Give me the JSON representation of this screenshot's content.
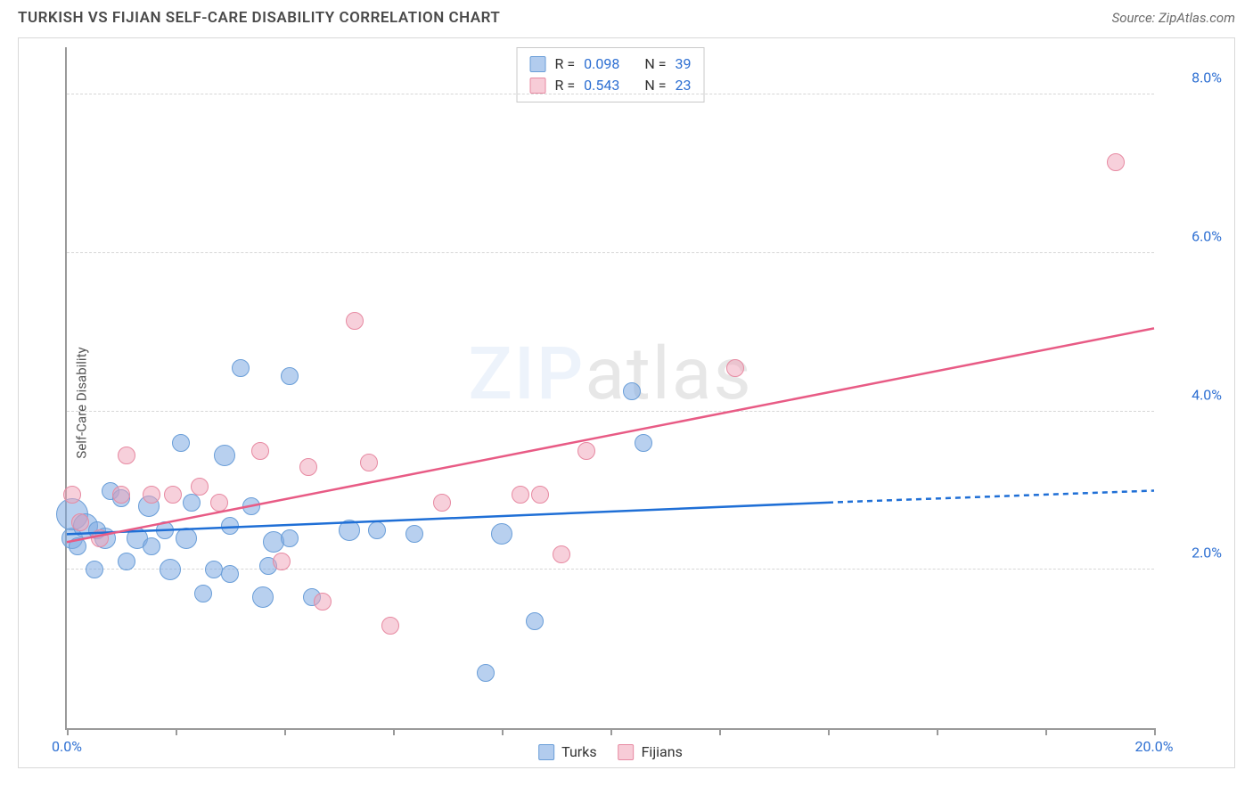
{
  "title": "TURKISH VS FIJIAN SELF-CARE DISABILITY CORRELATION CHART",
  "source": "Source: ZipAtlas.com",
  "ylabel": "Self-Care Disability",
  "watermark_a": "ZIP",
  "watermark_b": "atlas",
  "chart": {
    "type": "scatter",
    "background_color": "#ffffff",
    "grid_color": "#d6d6d6",
    "axis_color": "#9a9a9a",
    "tick_label_color": "#2d6fd2",
    "label_color": "#555555",
    "title_color": "#4a4a4a",
    "title_fontsize": 17,
    "label_fontsize": 15,
    "tick_fontsize": 16,
    "xlim": [
      0,
      20
    ],
    "ylim": [
      0,
      8.6
    ],
    "x_ticks": [
      0,
      2,
      4,
      6,
      8,
      10,
      12,
      14,
      16,
      18,
      20
    ],
    "x_tick_labels": {
      "0": "0.0%",
      "20": "20.0%"
    },
    "y_gridlines": [
      2,
      4,
      6,
      8
    ],
    "y_tick_labels": {
      "2": "2.0%",
      "4": "4.0%",
      "6": "6.0%",
      "8": "8.0%"
    },
    "marker_radius_default": 10,
    "series_blue": {
      "name": "Turks",
      "color_fill": "#7eaae2",
      "color_stroke": "#6a9ed8",
      "fill_opacity": 0.55,
      "R": "0.098",
      "N": "39",
      "trend": {
        "x1": 0,
        "y1": 2.45,
        "x2_solid": 14,
        "y2_solid": 2.85,
        "x2": 20,
        "y2": 3.0,
        "stroke": "#1f6fd6",
        "width": 2.5,
        "dash_after_solid": true
      },
      "points": [
        {
          "x": 0.1,
          "y": 2.4,
          "r": 12
        },
        {
          "x": 0.1,
          "y": 2.7,
          "r": 18
        },
        {
          "x": 0.2,
          "y": 2.3,
          "r": 10
        },
        {
          "x": 0.35,
          "y": 2.55,
          "r": 14
        },
        {
          "x": 0.5,
          "y": 2.0,
          "r": 10
        },
        {
          "x": 0.55,
          "y": 2.5,
          "r": 10
        },
        {
          "x": 0.7,
          "y": 2.4,
          "r": 12
        },
        {
          "x": 0.8,
          "y": 3.0,
          "r": 10
        },
        {
          "x": 1.0,
          "y": 2.9,
          "r": 10
        },
        {
          "x": 1.1,
          "y": 2.1,
          "r": 10
        },
        {
          "x": 1.3,
          "y": 2.4,
          "r": 12
        },
        {
          "x": 1.5,
          "y": 2.8,
          "r": 12
        },
        {
          "x": 1.55,
          "y": 2.3,
          "r": 10
        },
        {
          "x": 1.8,
          "y": 2.5,
          "r": 10
        },
        {
          "x": 1.9,
          "y": 2.0,
          "r": 12
        },
        {
          "x": 2.1,
          "y": 3.6,
          "r": 10
        },
        {
          "x": 2.2,
          "y": 2.4,
          "r": 12
        },
        {
          "x": 2.3,
          "y": 2.85,
          "r": 10
        },
        {
          "x": 2.5,
          "y": 1.7,
          "r": 10
        },
        {
          "x": 2.7,
          "y": 2.0,
          "r": 10
        },
        {
          "x": 2.9,
          "y": 3.45,
          "r": 12
        },
        {
          "x": 3.0,
          "y": 2.55,
          "r": 10
        },
        {
          "x": 3.0,
          "y": 1.95,
          "r": 10
        },
        {
          "x": 3.2,
          "y": 4.55,
          "r": 10
        },
        {
          "x": 3.4,
          "y": 2.8,
          "r": 10
        },
        {
          "x": 3.6,
          "y": 1.65,
          "r": 12
        },
        {
          "x": 3.7,
          "y": 2.05,
          "r": 10
        },
        {
          "x": 3.8,
          "y": 2.35,
          "r": 12
        },
        {
          "x": 4.1,
          "y": 4.45,
          "r": 10
        },
        {
          "x": 4.1,
          "y": 2.4,
          "r": 10
        },
        {
          "x": 4.5,
          "y": 1.65,
          "r": 10
        },
        {
          "x": 5.2,
          "y": 2.5,
          "r": 12
        },
        {
          "x": 5.7,
          "y": 2.5,
          "r": 10
        },
        {
          "x": 6.4,
          "y": 2.45,
          "r": 10
        },
        {
          "x": 7.7,
          "y": 0.7,
          "r": 10
        },
        {
          "x": 8.0,
          "y": 2.45,
          "r": 12
        },
        {
          "x": 8.6,
          "y": 1.35,
          "r": 10
        },
        {
          "x": 10.4,
          "y": 4.25,
          "r": 10
        },
        {
          "x": 10.6,
          "y": 3.6,
          "r": 10
        }
      ]
    },
    "series_pink": {
      "name": "Fijians",
      "color_fill": "#f0a2b7",
      "color_stroke": "#e78aa2",
      "fill_opacity": 0.5,
      "R": "0.543",
      "N": "23",
      "trend": {
        "x1": 0,
        "y1": 2.35,
        "x2": 20,
        "y2": 5.05,
        "stroke": "#e85b85",
        "width": 2.5
      },
      "points": [
        {
          "x": 0.1,
          "y": 2.95,
          "r": 10
        },
        {
          "x": 0.25,
          "y": 2.6,
          "r": 10
        },
        {
          "x": 0.6,
          "y": 2.4,
          "r": 10
        },
        {
          "x": 1.0,
          "y": 2.95,
          "r": 10
        },
        {
          "x": 1.1,
          "y": 3.45,
          "r": 10
        },
        {
          "x": 1.55,
          "y": 2.95,
          "r": 10
        },
        {
          "x": 1.95,
          "y": 2.95,
          "r": 10
        },
        {
          "x": 2.45,
          "y": 3.05,
          "r": 10
        },
        {
          "x": 2.8,
          "y": 2.85,
          "r": 10
        },
        {
          "x": 3.55,
          "y": 3.5,
          "r": 10
        },
        {
          "x": 3.95,
          "y": 2.1,
          "r": 10
        },
        {
          "x": 4.45,
          "y": 3.3,
          "r": 10
        },
        {
          "x": 4.7,
          "y": 1.6,
          "r": 10
        },
        {
          "x": 5.3,
          "y": 5.15,
          "r": 10
        },
        {
          "x": 5.55,
          "y": 3.35,
          "r": 10
        },
        {
          "x": 5.95,
          "y": 1.3,
          "r": 10
        },
        {
          "x": 6.9,
          "y": 2.85,
          "r": 10
        },
        {
          "x": 8.35,
          "y": 2.95,
          "r": 10
        },
        {
          "x": 8.7,
          "y": 2.95,
          "r": 10
        },
        {
          "x": 9.1,
          "y": 2.2,
          "r": 10
        },
        {
          "x": 9.55,
          "y": 3.5,
          "r": 10
        },
        {
          "x": 12.3,
          "y": 4.55,
          "r": 10
        },
        {
          "x": 19.3,
          "y": 7.15,
          "r": 10
        }
      ]
    }
  },
  "legend_top": {
    "r_label": "R =",
    "n_label": "N ="
  }
}
